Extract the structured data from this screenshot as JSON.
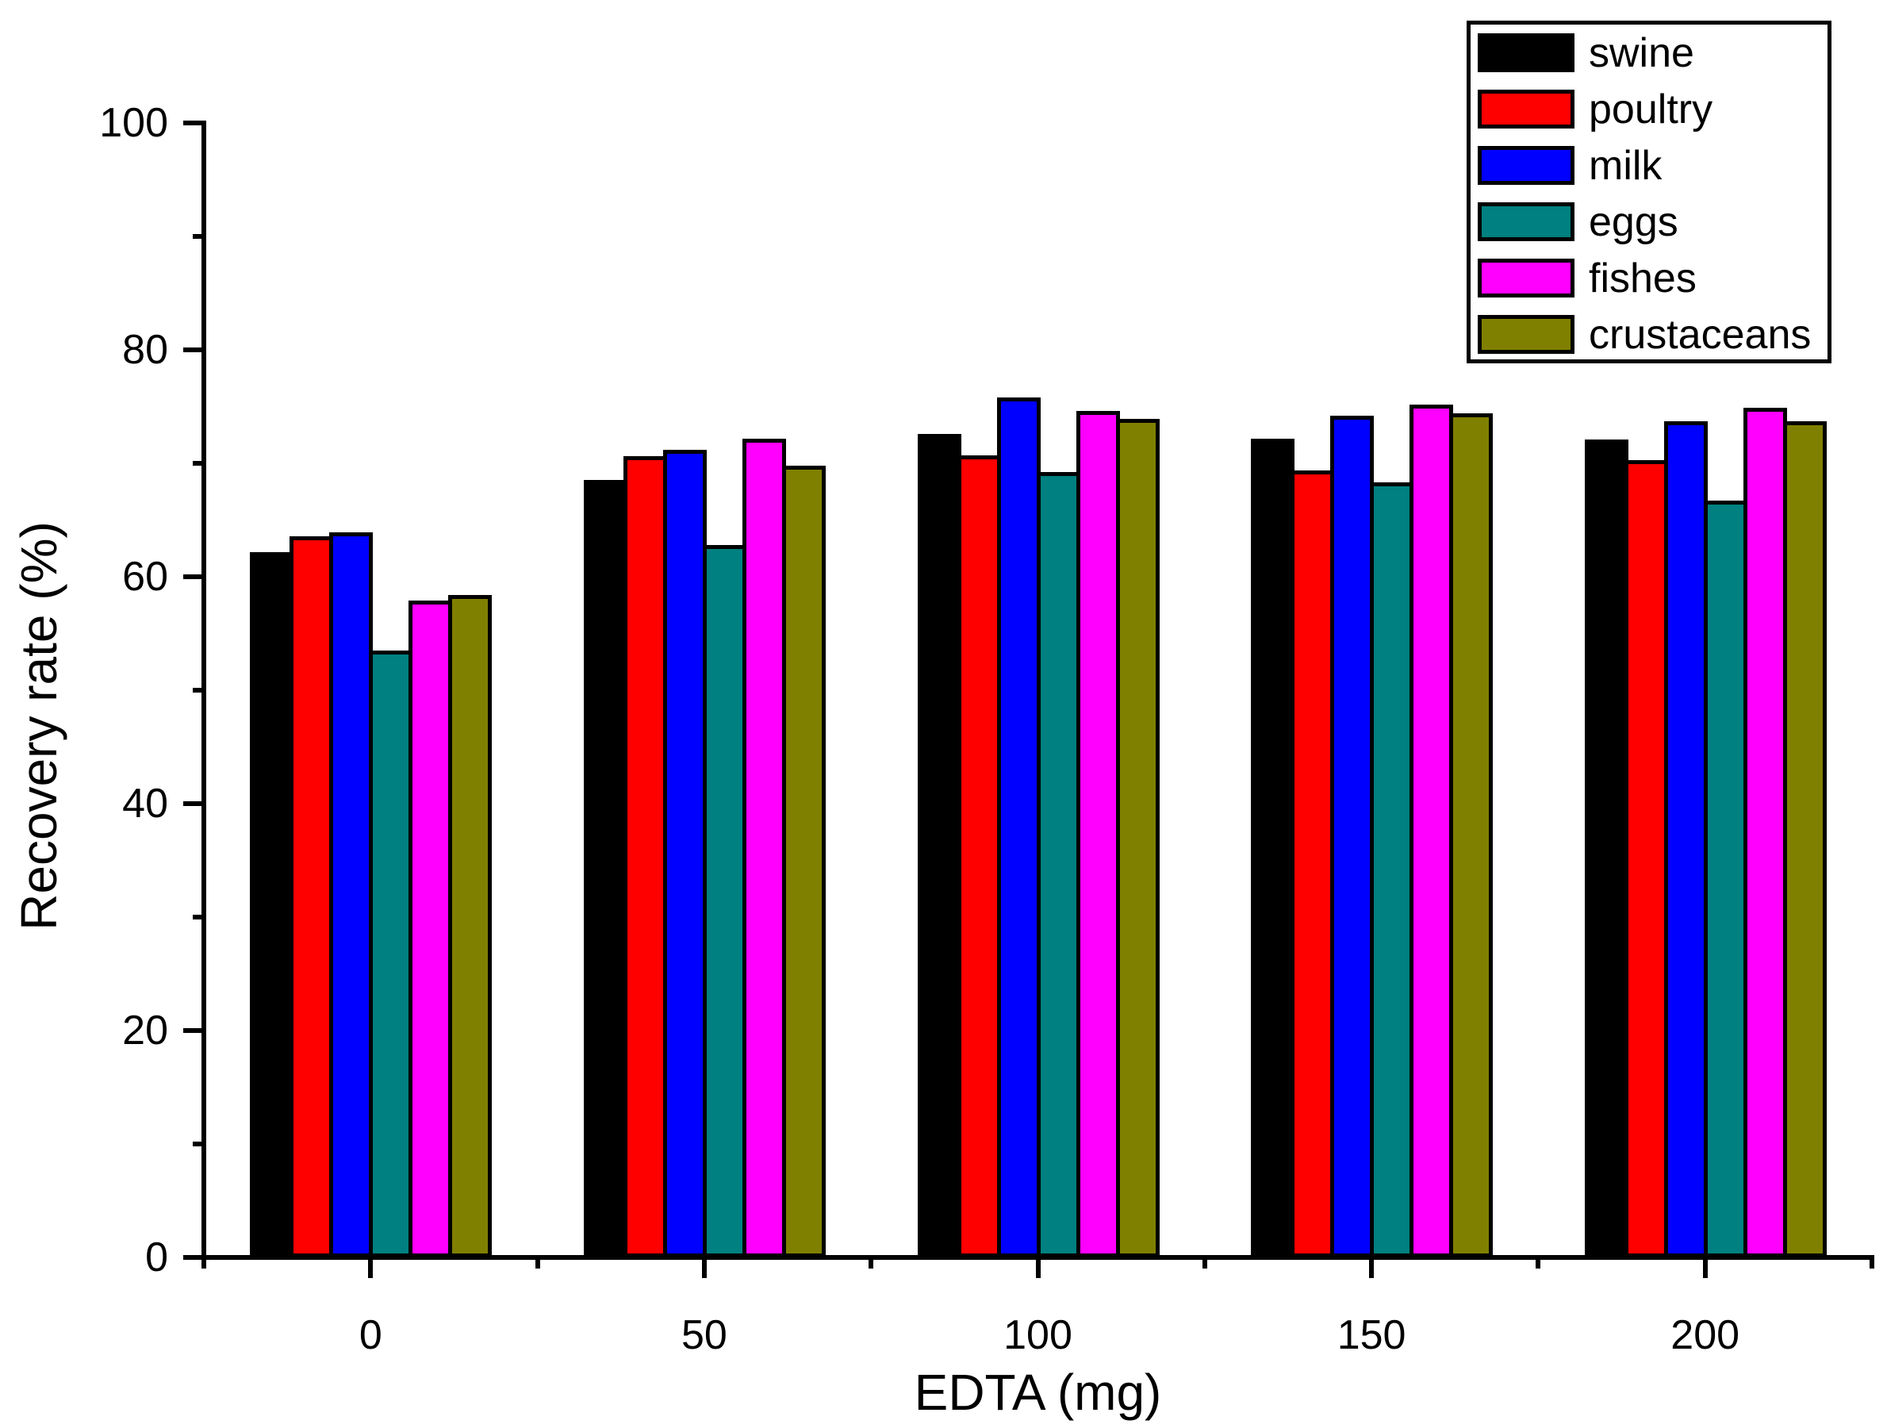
{
  "figure": {
    "background": "#ffffff",
    "text_color": "#000000",
    "axis_color": "#000000"
  },
  "chart_data": {
    "type": "bar",
    "title": "",
    "xlabel": "EDTA (mg)",
    "ylabel": "Recovery rate (%)",
    "categories": [
      "0",
      "50",
      "100",
      "150",
      "200"
    ],
    "series": [
      {
        "name": "swine",
        "color": "#000000",
        "values": [
          62.2,
          68.5,
          72.6,
          72.2,
          72.1
        ]
      },
      {
        "name": "poultry",
        "color": "#ff0000",
        "values": [
          63.6,
          70.6,
          70.7,
          69.4,
          70.3
        ]
      },
      {
        "name": "milk",
        "color": "#0000ff",
        "values": [
          63.9,
          71.2,
          75.8,
          74.2,
          73.7
        ]
      },
      {
        "name": "eggs",
        "color": "#008080",
        "values": [
          53.5,
          62.8,
          69.2,
          68.3,
          66.7
        ]
      },
      {
        "name": "fishes",
        "color": "#ff00ff",
        "values": [
          57.9,
          72.2,
          74.6,
          75.2,
          74.9
        ]
      },
      {
        "name": "crustaceans",
        "color": "#808000",
        "values": [
          58.4,
          69.8,
          73.9,
          74.4,
          73.7
        ]
      }
    ],
    "ylim": [
      0,
      100
    ],
    "y_major_ticks": [
      0,
      20,
      40,
      60,
      80,
      100
    ],
    "y_minor_ticks": [
      10,
      30,
      50,
      70,
      90
    ],
    "grid": false,
    "legend_position": "top-right",
    "bar_outline_color": "#000000"
  }
}
